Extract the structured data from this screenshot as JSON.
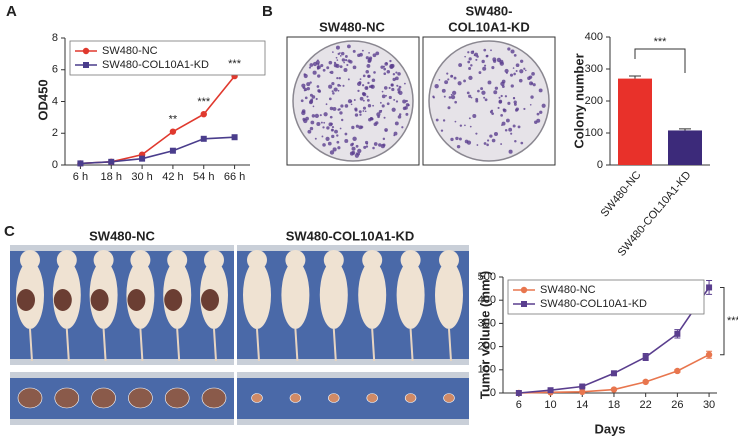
{
  "panel_labels": [
    "A",
    "B",
    "C"
  ],
  "colony_photos": {
    "left_title": "SW480-NC",
    "right_title_lines": [
      "SW480-",
      "COL10A1-KD"
    ]
  },
  "tumor_photos": {
    "left_title": "SW480-NC",
    "right_title": "SW480-COL10A1-KD"
  },
  "chart_data": [
    {
      "type": "line",
      "ylabel": "OD450",
      "categories": [
        "6 h",
        "18 h",
        "30 h",
        "42 h",
        "54 h",
        "66 h"
      ],
      "series": [
        {
          "name": "SW480-NC",
          "color": "#e0392e",
          "marker": "circle",
          "values": [
            0.1,
            0.2,
            0.65,
            2.1,
            3.2,
            5.6
          ]
        },
        {
          "name": "SW480-COL10A1-KD",
          "color": "#4a3d8c",
          "marker": "square",
          "values": [
            0.1,
            0.2,
            0.4,
            0.9,
            1.65,
            1.75
          ]
        }
      ],
      "ylim": [
        0,
        8
      ],
      "yticks": [
        0,
        2,
        4,
        6,
        8
      ],
      "legend": "upper left",
      "annotations": [
        "**",
        "***",
        "***"
      ]
    },
    {
      "type": "bar",
      "ylabel": "Colony number",
      "categories": [
        "SW480-NC",
        "SW480-COL10A1-KD"
      ],
      "values": [
        270,
        108
      ],
      "errors": [
        8,
        5
      ],
      "colors": [
        "#e8312a",
        "#3c2a7a"
      ],
      "ylim": [
        0,
        400
      ],
      "yticks": [
        0,
        100,
        200,
        300,
        400
      ],
      "annotations": [
        "***"
      ]
    },
    {
      "type": "line",
      "ylabel": "Tumor volume (mm³)",
      "xlabel": "Days",
      "x": [
        6,
        10,
        14,
        18,
        22,
        26,
        30
      ],
      "series": [
        {
          "name": "SW480-NC",
          "color": "#e8764e",
          "marker": "circle",
          "values": [
            0,
            3,
            5,
            15,
            48,
            95,
            165
          ],
          "errors": [
            0,
            1,
            2,
            3,
            5,
            6,
            15
          ]
        },
        {
          "name": "SW480-COL10A1-KD",
          "color": "#5a3e8e",
          "marker": "square",
          "values": [
            0,
            12,
            28,
            85,
            155,
            255,
            455
          ],
          "errors": [
            0,
            2,
            3,
            6,
            15,
            18,
            30
          ]
        }
      ],
      "xlim": [
        4,
        31
      ],
      "xticks": [
        6,
        10,
        14,
        18,
        22,
        26,
        30
      ],
      "ylim": [
        0,
        500
      ],
      "yticks": [
        0,
        100,
        200,
        300,
        400,
        500
      ],
      "legend": "upper left",
      "annotations": [
        "***"
      ]
    }
  ]
}
